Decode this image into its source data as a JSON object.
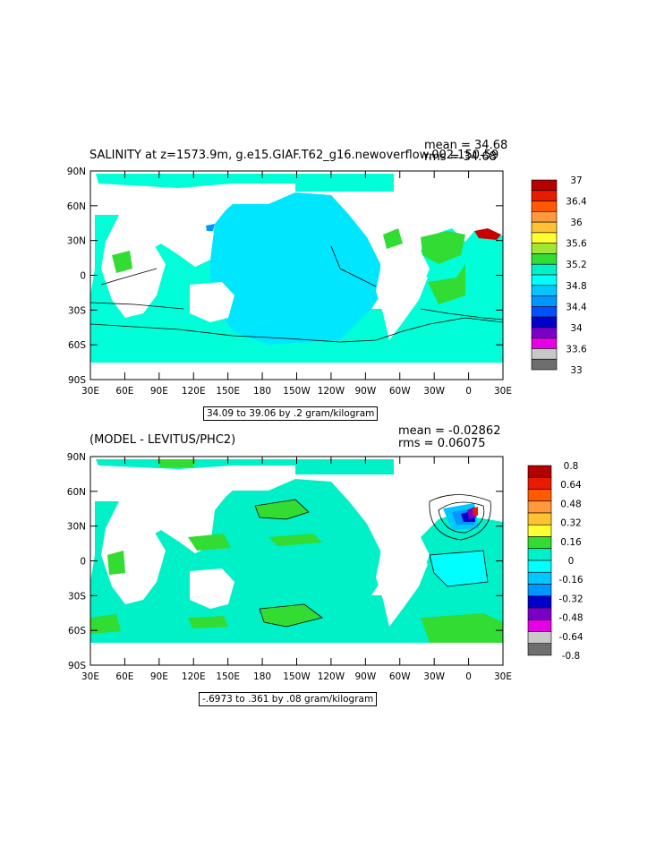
{
  "top_panel": {
    "title": "SALINITY at z=1573.9m, g.e15.GIAF.T62_g16.newoverflow.002.150-59",
    "mean_label": "mean = 34.68",
    "rms_label": "rms = 34.68",
    "range_label": "34.09 to 39.06 by .2 gram/kilogram",
    "lat_labels": [
      "90N",
      "60N",
      "30N",
      "0",
      "30S",
      "60S",
      "90S"
    ],
    "lon_labels": [
      "30E",
      "60E",
      "90E",
      "120E",
      "150E",
      "180",
      "150W",
      "120W",
      "90W",
      "60W",
      "30W",
      "0",
      "30E"
    ],
    "colorbar": {
      "labels": [
        "37",
        "36.4",
        "36",
        "35.6",
        "35.2",
        "34.8",
        "34.4",
        "34",
        "33.6",
        "33"
      ],
      "colors": [
        "#b40000",
        "#e81b00",
        "#ff5a00",
        "#ff9a3c",
        "#ffc232",
        "#ffff32",
        "#a0e632",
        "#32dc32",
        "#00f0c8",
        "#00ffff",
        "#00c8ff",
        "#0096ff",
        "#0050ff",
        "#0000c8",
        "#7a00c8",
        "#e600e6",
        "#c8c8c8",
        "#6e6e6e"
      ]
    }
  },
  "bottom_panel": {
    "title": "(MODEL - LEVITUS/PHC2)",
    "mean_label": "mean = -0.02862",
    "rms_label": "rms = 0.06075",
    "range_label": "-.6973 to .361 by .08 gram/kilogram",
    "lat_labels": [
      "90N",
      "60N",
      "30N",
      "0",
      "30S",
      "60S",
      "90S"
    ],
    "lon_labels": [
      "30E",
      "60E",
      "90E",
      "120E",
      "150E",
      "180",
      "150W",
      "120W",
      "90W",
      "60W",
      "30W",
      "0",
      "30E"
    ],
    "colorbar": {
      "labels": [
        "0.8",
        "0.64",
        "0.48",
        "0.32",
        "0.16",
        "0",
        "-0.16",
        "-0.32",
        "-0.48",
        "-0.64",
        "-0.8"
      ],
      "colors": [
        "#b40000",
        "#e81b00",
        "#ff5a00",
        "#ff9a3c",
        "#ffc232",
        "#ffff32",
        "#32dc32",
        "#00f0c8",
        "#00ffff",
        "#00c8ff",
        "#0096ff",
        "#0000c8",
        "#7a00c8",
        "#e600e6",
        "#c8c8c8",
        "#6e6e6e"
      ]
    }
  }
}
